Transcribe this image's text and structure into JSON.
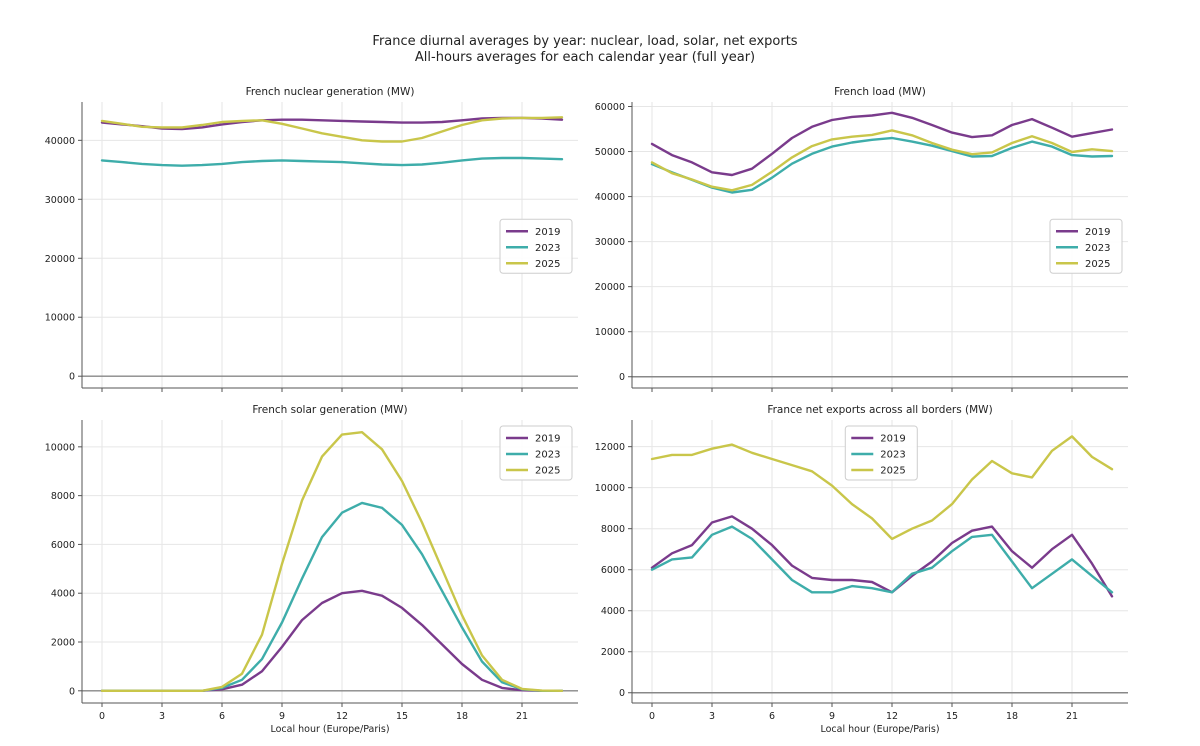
{
  "figure": {
    "title": "France diurnal averages by year: nuclear, load, solar, net exports",
    "subtitle": "All-hours averages for each calendar year (full year)"
  },
  "colors": {
    "2019": "#7a3b8c",
    "2023": "#3eadaa",
    "2025": "#c9c64a",
    "grid": "#e6e6e6",
    "axis": "#555555",
    "zero": "#888888"
  },
  "chart_data": [
    {
      "type": "line",
      "title": "French nuclear generation (MW)",
      "xlabel": "",
      "ylabel": "",
      "xlim": [
        -1,
        23.8
      ],
      "ylim": [
        -2000,
        46500
      ],
      "xticks": [
        0,
        3,
        6,
        9,
        12,
        15,
        18,
        21
      ],
      "yticks": [
        0,
        10000,
        20000,
        30000,
        40000
      ],
      "legend": "right-middle",
      "grid": true,
      "x": [
        0,
        1,
        2,
        3,
        4,
        5,
        6,
        7,
        8,
        9,
        10,
        11,
        12,
        13,
        14,
        15,
        16,
        17,
        18,
        19,
        20,
        21,
        22,
        23
      ],
      "series": [
        {
          "name": "2019",
          "values": [
            43000,
            42700,
            42400,
            42000,
            41900,
            42200,
            42700,
            43100,
            43400,
            43500,
            43500,
            43400,
            43300,
            43200,
            43100,
            43000,
            43000,
            43100,
            43400,
            43700,
            43800,
            43800,
            43700,
            43500
          ]
        },
        {
          "name": "2023",
          "values": [
            36600,
            36300,
            36000,
            35800,
            35700,
            35800,
            36000,
            36300,
            36500,
            36600,
            36500,
            36400,
            36300,
            36100,
            35900,
            35800,
            35900,
            36200,
            36600,
            36900,
            37000,
            37000,
            36900,
            36800
          ]
        },
        {
          "name": "2025",
          "values": [
            43300,
            42800,
            42300,
            42200,
            42200,
            42600,
            43100,
            43300,
            43400,
            42800,
            42000,
            41200,
            40600,
            40000,
            39800,
            39800,
            40400,
            41500,
            42600,
            43400,
            43700,
            43800,
            43800,
            43900
          ]
        }
      ]
    },
    {
      "type": "line",
      "title": "French load (MW)",
      "xlabel": "",
      "ylabel": "",
      "xlim": [
        -1,
        23.8
      ],
      "ylim": [
        -2500,
        61000
      ],
      "xticks": [
        0,
        3,
        6,
        9,
        12,
        15,
        18,
        21
      ],
      "yticks": [
        0,
        10000,
        20000,
        30000,
        40000,
        50000,
        60000
      ],
      "legend": "right-middle",
      "grid": true,
      "x": [
        0,
        1,
        2,
        3,
        4,
        5,
        6,
        7,
        8,
        9,
        10,
        11,
        12,
        13,
        14,
        15,
        16,
        17,
        18,
        19,
        20,
        21,
        22,
        23
      ],
      "series": [
        {
          "name": "2019",
          "values": [
            51700,
            49200,
            47600,
            45400,
            44800,
            46200,
            49500,
            53000,
            55500,
            57000,
            57700,
            58000,
            58600,
            57500,
            55900,
            54200,
            53200,
            53600,
            55900,
            57200,
            55300,
            53300,
            54100,
            54900
          ]
        },
        {
          "name": "2023",
          "values": [
            47200,
            45400,
            43700,
            42000,
            40900,
            41500,
            44200,
            47300,
            49500,
            51100,
            52000,
            52600,
            53000,
            52200,
            51300,
            50100,
            48900,
            49000,
            50800,
            52200,
            51100,
            49200,
            48900,
            49000
          ]
        },
        {
          "name": "2025",
          "values": [
            47600,
            45200,
            43800,
            42200,
            41400,
            42600,
            45500,
            48700,
            51200,
            52700,
            53300,
            53700,
            54700,
            53600,
            51900,
            50400,
            49400,
            49800,
            51900,
            53400,
            51900,
            49900,
            50500,
            50100
          ]
        }
      ]
    },
    {
      "type": "line",
      "title": "French solar generation (MW)",
      "xlabel": "Local hour (Europe/Paris)",
      "ylabel": "",
      "xlim": [
        -1,
        23.8
      ],
      "ylim": [
        -500,
        11100
      ],
      "xticks": [
        0,
        3,
        6,
        9,
        12,
        15,
        18,
        21
      ],
      "yticks": [
        0,
        2000,
        4000,
        6000,
        8000,
        10000
      ],
      "legend": "top-right",
      "grid": true,
      "x": [
        0,
        1,
        2,
        3,
        4,
        5,
        6,
        7,
        8,
        9,
        10,
        11,
        12,
        13,
        14,
        15,
        16,
        17,
        18,
        19,
        20,
        21,
        22,
        23
      ],
      "series": [
        {
          "name": "2019",
          "values": [
            0,
            0,
            0,
            0,
            0,
            0,
            60,
            250,
            800,
            1800,
            2900,
            3600,
            4000,
            4100,
            3900,
            3400,
            2700,
            1900,
            1100,
            450,
            120,
            20,
            0,
            0
          ]
        },
        {
          "name": "2023",
          "values": [
            0,
            0,
            0,
            0,
            0,
            0,
            120,
            450,
            1300,
            2800,
            4600,
            6300,
            7300,
            7700,
            7500,
            6800,
            5600,
            4100,
            2600,
            1200,
            350,
            60,
            0,
            0
          ]
        },
        {
          "name": "2025",
          "values": [
            0,
            0,
            0,
            0,
            0,
            0,
            160,
            700,
            2300,
            5200,
            7800,
            9600,
            10500,
            10600,
            9900,
            8600,
            6900,
            5000,
            3100,
            1450,
            450,
            80,
            10,
            0
          ]
        }
      ]
    },
    {
      "type": "line",
      "title": "France net exports across all borders (MW)",
      "xlabel": "Local hour (Europe/Paris)",
      "ylabel": "",
      "xlim": [
        -1,
        23.8
      ],
      "ylim": [
        -500,
        13300
      ],
      "xticks": [
        0,
        3,
        6,
        9,
        12,
        15,
        18,
        21
      ],
      "yticks": [
        0,
        2000,
        4000,
        6000,
        8000,
        10000,
        12000
      ],
      "legend": "top-center",
      "grid": true,
      "x": [
        0,
        1,
        2,
        3,
        4,
        5,
        6,
        7,
        8,
        9,
        10,
        11,
        12,
        13,
        14,
        15,
        16,
        17,
        18,
        19,
        20,
        21,
        22,
        23
      ],
      "series": [
        {
          "name": "2019",
          "values": [
            6100,
            6800,
            7200,
            8300,
            8600,
            8000,
            7200,
            6200,
            5600,
            5500,
            5500,
            5400,
            4900,
            5700,
            6400,
            7300,
            7900,
            8100,
            6900,
            6100,
            7000,
            7700,
            6300,
            4700
          ]
        },
        {
          "name": "2023",
          "values": [
            6000,
            6500,
            6600,
            7700,
            8100,
            7500,
            6500,
            5500,
            4900,
            4900,
            5200,
            5100,
            4900,
            5800,
            6100,
            6900,
            7600,
            7700,
            6400,
            5100,
            5800,
            6500,
            5700,
            4900
          ]
        },
        {
          "name": "2025",
          "values": [
            11400,
            11600,
            11600,
            11900,
            12100,
            11700,
            11400,
            11100,
            10800,
            10100,
            9200,
            8500,
            7500,
            8000,
            8400,
            9200,
            10400,
            11300,
            10700,
            10500,
            11800,
            12500,
            11500,
            10900
          ]
        }
      ]
    }
  ]
}
